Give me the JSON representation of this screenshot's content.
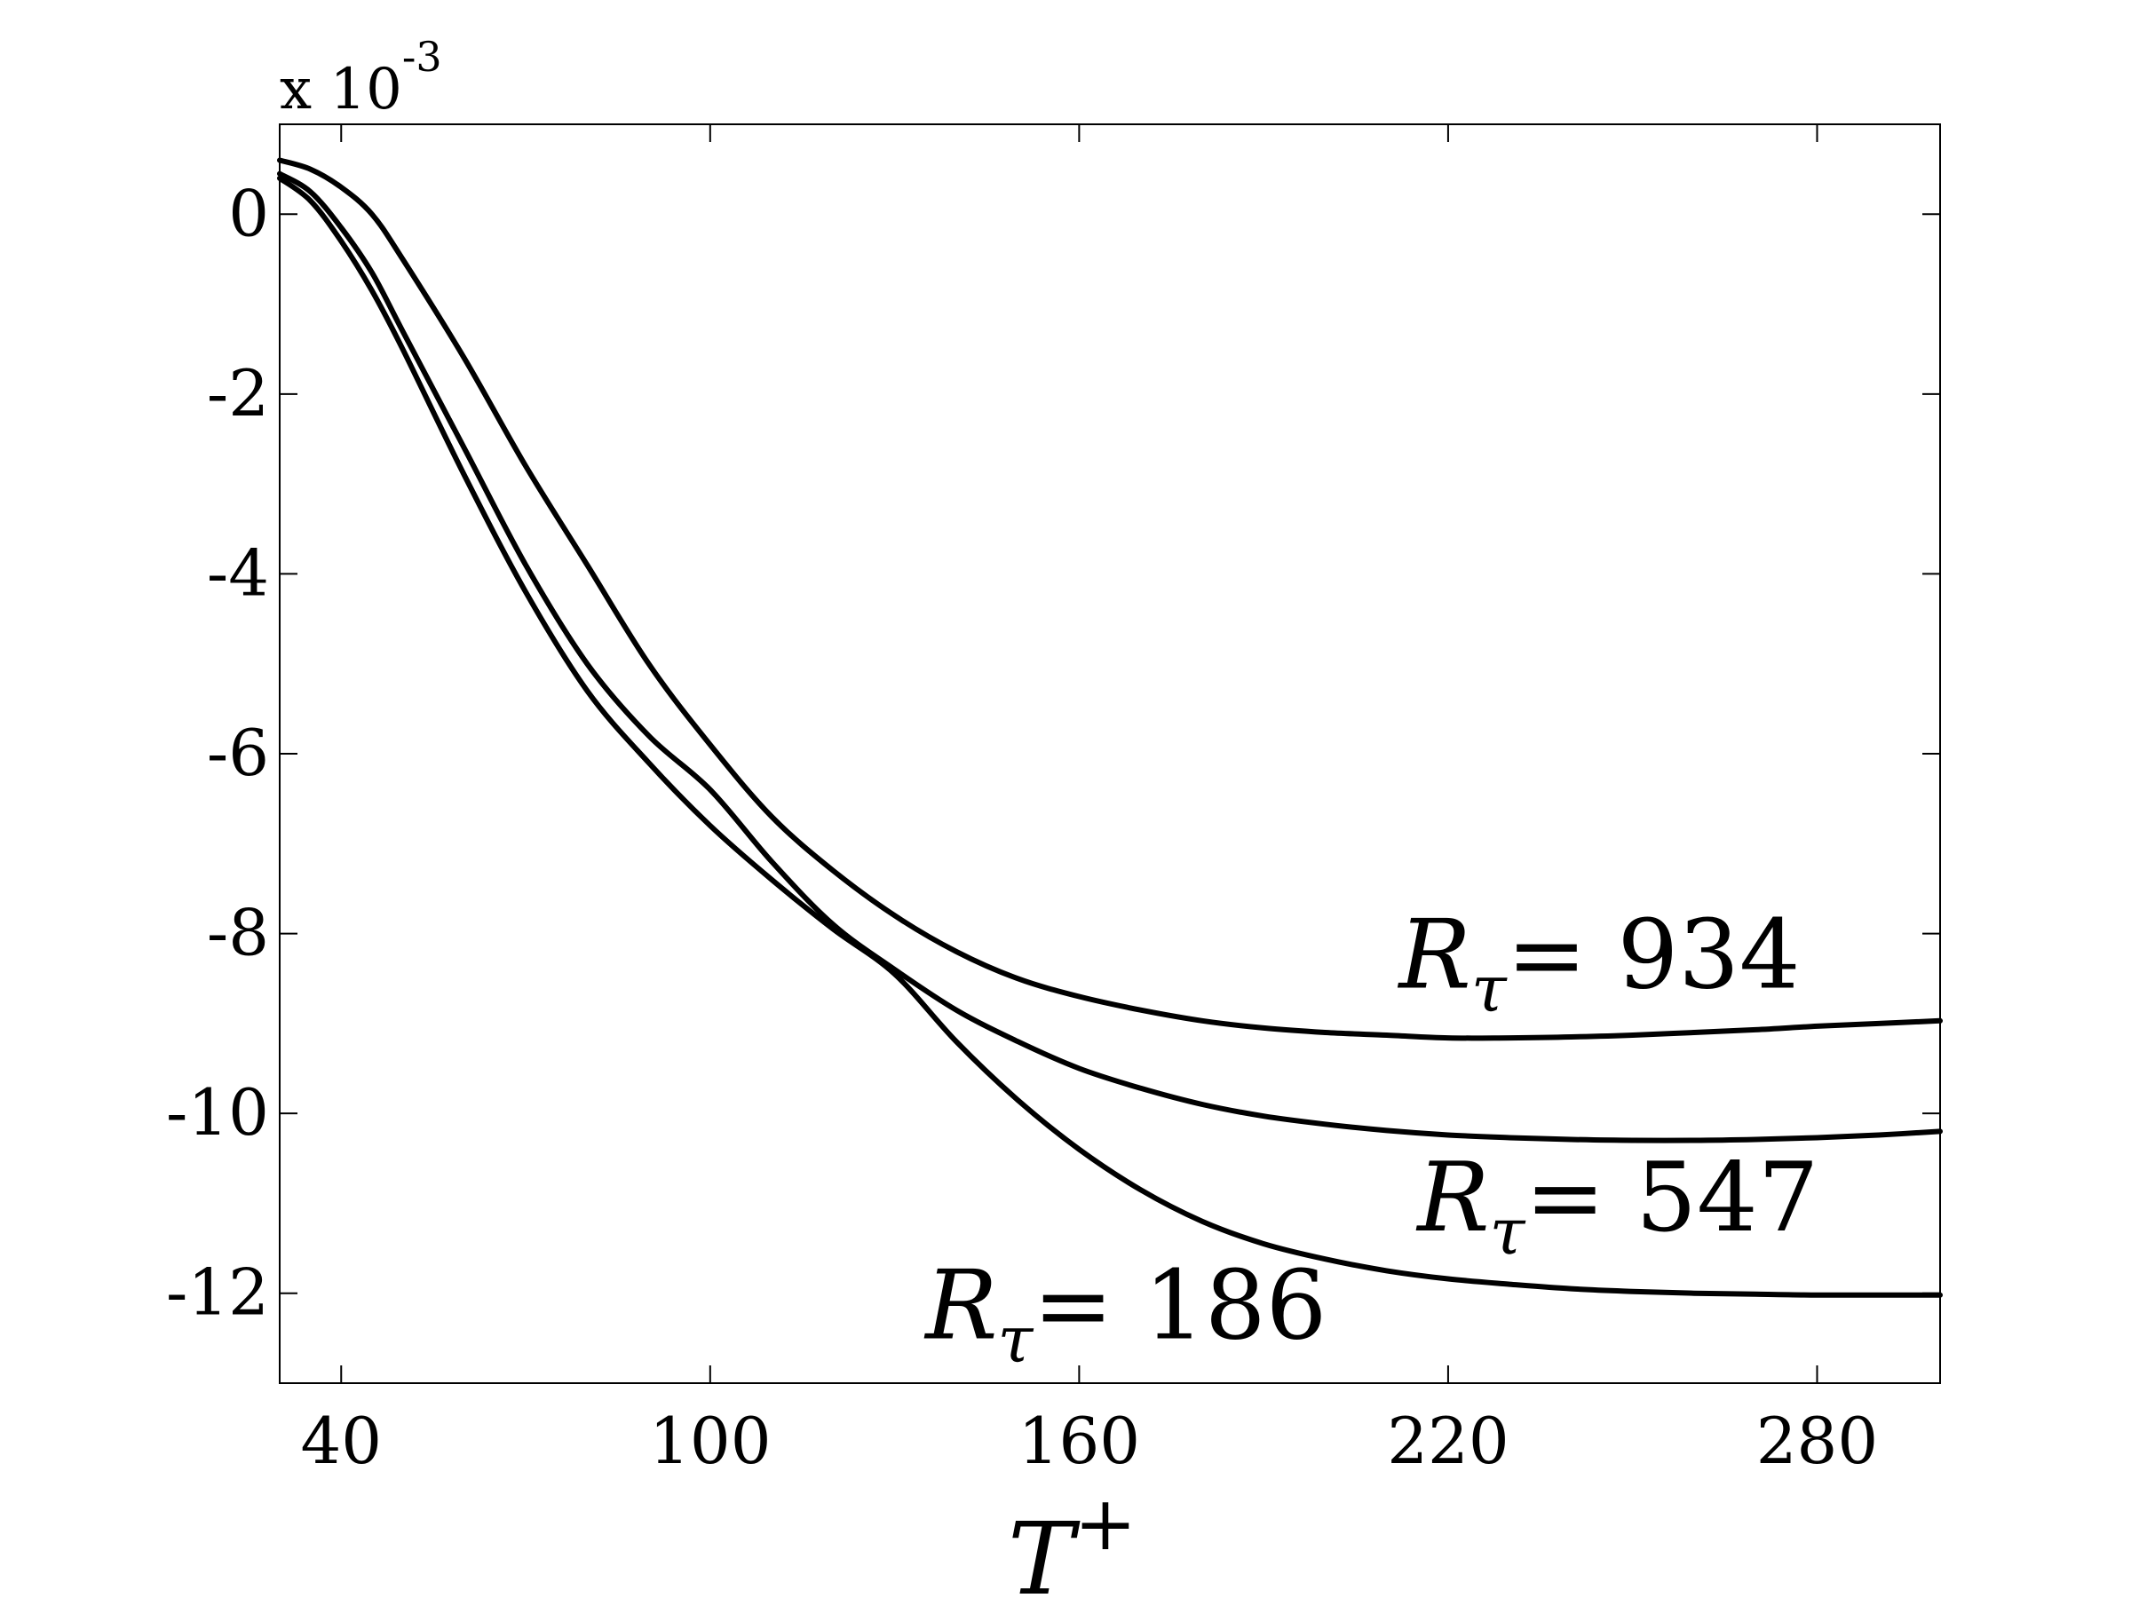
{
  "chart_data": {
    "type": "line",
    "xlabel": "T",
    "xlabel_superscript": "+",
    "ylabel": "",
    "multiplier_prefix": "x 10",
    "multiplier_exponent": "-3",
    "xlim": [
      30,
      300
    ],
    "ylim": [
      -13,
      1
    ],
    "xticks": [
      40,
      100,
      160,
      220,
      280
    ],
    "yticks": [
      0,
      -2,
      -4,
      -6,
      -8,
      -10,
      -12
    ],
    "xtick_labels": [
      "40",
      "100",
      "160",
      "220",
      "280"
    ],
    "ytick_labels": [
      "0",
      "-2",
      "-4",
      "-6",
      "-8",
      "-10",
      "-12"
    ],
    "grid": false,
    "legend": "none",
    "series": [
      {
        "label_symbol": "R",
        "label_subscript": "τ",
        "label_value": "= 934",
        "x": [
          30,
          35,
          40,
          45,
          50,
          60,
          70,
          80,
          90,
          100,
          110,
          120,
          130,
          140,
          150,
          160,
          170,
          180,
          190,
          200,
          210,
          220,
          230,
          240,
          250,
          260,
          270,
          280,
          290,
          300
        ],
        "values": [
          0.6,
          0.5,
          0.3,
          0.0,
          -0.5,
          -1.6,
          -2.8,
          -3.9,
          -5.0,
          -5.9,
          -6.7,
          -7.3,
          -7.8,
          -8.2,
          -8.5,
          -8.7,
          -8.85,
          -8.97,
          -9.05,
          -9.1,
          -9.13,
          -9.16,
          -9.16,
          -9.15,
          -9.13,
          -9.1,
          -9.07,
          -9.03,
          -9.0,
          -8.97
        ],
        "anno_x": 212,
        "anno_y": -8.6
      },
      {
        "label_symbol": "R",
        "label_subscript": "τ",
        "label_value": "= 547",
        "x": [
          30,
          35,
          40,
          45,
          50,
          60,
          70,
          80,
          90,
          100,
          110,
          120,
          130,
          140,
          150,
          160,
          170,
          180,
          190,
          200,
          210,
          220,
          230,
          240,
          250,
          260,
          270,
          280,
          290,
          300
        ],
        "values": [
          0.45,
          0.25,
          -0.15,
          -0.65,
          -1.3,
          -2.6,
          -3.9,
          -5.0,
          -5.8,
          -6.4,
          -7.2,
          -7.9,
          -8.4,
          -8.85,
          -9.2,
          -9.5,
          -9.72,
          -9.9,
          -10.03,
          -10.12,
          -10.19,
          -10.24,
          -10.27,
          -10.29,
          -10.3,
          -10.3,
          -10.29,
          -10.27,
          -10.24,
          -10.2
        ],
        "anno_x": 215,
        "anno_y": -11.3
      },
      {
        "label_symbol": "R",
        "label_subscript": "τ",
        "label_value": "= 186",
        "x": [
          30,
          35,
          40,
          45,
          50,
          60,
          70,
          80,
          90,
          100,
          110,
          120,
          130,
          140,
          150,
          160,
          170,
          180,
          190,
          200,
          210,
          220,
          230,
          240,
          250,
          260,
          270,
          280,
          290,
          300
        ],
        "values": [
          0.4,
          0.15,
          -0.3,
          -0.85,
          -1.5,
          -2.9,
          -4.2,
          -5.3,
          -6.1,
          -6.8,
          -7.4,
          -7.95,
          -8.45,
          -9.2,
          -9.85,
          -10.4,
          -10.85,
          -11.2,
          -11.45,
          -11.62,
          -11.75,
          -11.84,
          -11.9,
          -11.95,
          -11.98,
          -12.0,
          -12.01,
          -12.02,
          -12.02,
          -12.02
        ],
        "anno_x": 135,
        "anno_y": -12.5
      }
    ]
  }
}
